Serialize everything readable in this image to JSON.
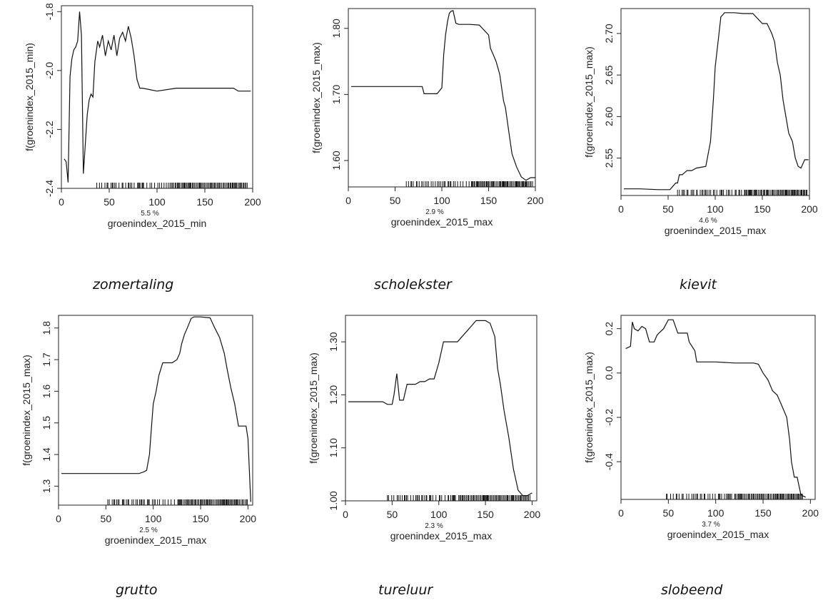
{
  "chart_data": [
    {
      "type": "line",
      "caption": "zomertaling",
      "xlabel": "groenindex_2015_min",
      "ylabel": "f(groenindex_2015_min)",
      "importance_label": "5.5 %",
      "xlim": [
        0,
        200
      ],
      "ylim": [
        -2.4,
        -1.78
      ],
      "x_ticks": [
        "0",
        "50",
        "100",
        "150",
        "200"
      ],
      "y_ticks": [
        "-2.4",
        "-2.2",
        "-2.0",
        "-1.8"
      ],
      "x": [
        3,
        5,
        7,
        9,
        11,
        13,
        15,
        17,
        19,
        21,
        23,
        25,
        27,
        29,
        31,
        33,
        35,
        38,
        40,
        43,
        46,
        49,
        52,
        55,
        58,
        61,
        64,
        67,
        70,
        73,
        76,
        79,
        82,
        85,
        100,
        120,
        140,
        160,
        180,
        185,
        198
      ],
      "y": [
        -2.3,
        -2.31,
        -2.38,
        -2.02,
        -1.96,
        -1.93,
        -1.92,
        -1.9,
        -1.8,
        -1.88,
        -2.35,
        -2.25,
        -2.15,
        -2.1,
        -2.08,
        -2.09,
        -1.97,
        -1.9,
        -1.92,
        -1.88,
        -1.95,
        -1.9,
        -1.93,
        -1.88,
        -1.95,
        -1.89,
        -1.87,
        -1.9,
        -1.85,
        -1.89,
        -1.95,
        -2.03,
        -2.06,
        -2.06,
        -2.07,
        -2.06,
        -2.06,
        -2.06,
        -2.06,
        -2.07,
        -2.07
      ],
      "rug_range": [
        37,
        195
      ]
    },
    {
      "type": "line",
      "caption": "scholekster",
      "xlabel": "groenindex_2015_max",
      "ylabel": "f(groenindex_2015_max)",
      "importance_label": "2.9 %",
      "xlim": [
        0,
        200
      ],
      "ylim": [
        1.56,
        1.83
      ],
      "x_ticks": [
        "0",
        "50",
        "100",
        "150",
        "200"
      ],
      "y_ticks": [
        "1.60",
        "1.70",
        "1.80"
      ],
      "x": [
        3,
        20,
        40,
        60,
        79,
        81,
        95,
        100,
        102,
        104,
        106,
        108,
        110,
        112,
        115,
        118,
        120,
        130,
        140,
        150,
        152,
        155,
        158,
        160,
        162,
        164,
        166,
        168,
        170,
        172,
        175,
        180,
        185,
        190,
        195,
        200
      ],
      "y": [
        1.712,
        1.712,
        1.712,
        1.712,
        1.712,
        1.701,
        1.701,
        1.71,
        1.76,
        1.79,
        1.81,
        1.823,
        1.826,
        1.827,
        1.808,
        1.806,
        1.806,
        1.806,
        1.805,
        1.79,
        1.77,
        1.76,
        1.75,
        1.74,
        1.73,
        1.71,
        1.69,
        1.68,
        1.66,
        1.64,
        1.61,
        1.59,
        1.575,
        1.57,
        1.574,
        1.574
      ],
      "rug_range": [
        62,
        198
      ]
    },
    {
      "type": "line",
      "caption": "kievit",
      "xlabel": "groenindex_2015_max",
      "ylabel": "f(groenindex_2015_max)",
      "importance_label": "4.6 %",
      "xlim": [
        0,
        200
      ],
      "ylim": [
        2.505,
        2.73
      ],
      "x_ticks": [
        "0",
        "50",
        "100",
        "150",
        "200"
      ],
      "y_ticks": [
        "2.55",
        "2.60",
        "2.65",
        "2.70"
      ],
      "x": [
        3,
        20,
        40,
        52,
        55,
        58,
        60,
        62,
        65,
        70,
        75,
        80,
        90,
        95,
        98,
        100,
        103,
        106,
        110,
        120,
        130,
        140,
        150,
        155,
        160,
        163,
        166,
        169,
        172,
        175,
        178,
        182,
        185,
        188,
        191,
        195,
        199
      ],
      "y": [
        2.513,
        2.513,
        2.512,
        2.512,
        2.516,
        2.52,
        2.52,
        2.53,
        2.53,
        2.535,
        2.535,
        2.538,
        2.54,
        2.57,
        2.62,
        2.66,
        2.69,
        2.72,
        2.725,
        2.725,
        2.724,
        2.724,
        2.712,
        2.712,
        2.7,
        2.69,
        2.665,
        2.65,
        2.62,
        2.6,
        2.58,
        2.57,
        2.55,
        2.54,
        2.538,
        2.548,
        2.548
      ],
      "rug_range": [
        60,
        198
      ]
    },
    {
      "type": "line",
      "caption": "grutto",
      "xlabel": "groenindex_2015_max",
      "ylabel": "f(groenindex_2015_max)",
      "importance_label": "2.5 %",
      "xlim": [
        0,
        205
      ],
      "ylim": [
        1.24,
        1.84
      ],
      "x_ticks": [
        "0",
        "50",
        "100",
        "150",
        "200"
      ],
      "y_ticks": [
        "1.3",
        "1.4",
        "1.5",
        "1.6",
        "1.7",
        "1.8"
      ],
      "x": [
        3,
        20,
        40,
        60,
        85,
        90,
        93,
        96,
        98,
        100,
        103,
        106,
        110,
        115,
        120,
        125,
        128,
        130,
        133,
        136,
        140,
        143,
        150,
        160,
        165,
        170,
        175,
        178,
        182,
        186,
        190,
        195,
        198,
        200,
        203
      ],
      "y": [
        1.34,
        1.34,
        1.34,
        1.34,
        1.34,
        1.345,
        1.35,
        1.4,
        1.48,
        1.56,
        1.6,
        1.65,
        1.69,
        1.69,
        1.69,
        1.7,
        1.72,
        1.75,
        1.78,
        1.8,
        1.83,
        1.835,
        1.835,
        1.832,
        1.8,
        1.77,
        1.72,
        1.67,
        1.61,
        1.56,
        1.49,
        1.49,
        1.49,
        1.45,
        1.25
      ],
      "rug_range": [
        52,
        200
      ]
    },
    {
      "type": "line",
      "caption": "tureluur",
      "xlabel": "groenindex_2015_max",
      "ylabel": "f(groenindex_2015_max)",
      "importance_label": "2.3 %",
      "xlim": [
        0,
        205
      ],
      "ylim": [
        1.0,
        1.35
      ],
      "x_ticks": [
        "0",
        "50",
        "100",
        "150",
        "200"
      ],
      "y_ticks": [
        "1.00",
        "1.10",
        "1.20",
        "1.30"
      ],
      "x": [
        3,
        20,
        40,
        45,
        50,
        52,
        55,
        58,
        62,
        66,
        70,
        75,
        80,
        85,
        90,
        95,
        100,
        105,
        110,
        115,
        120,
        125,
        130,
        135,
        140,
        145,
        150,
        155,
        160,
        163,
        166,
        170,
        175,
        180,
        185,
        190,
        195,
        200
      ],
      "y": [
        1.187,
        1.187,
        1.187,
        1.182,
        1.182,
        1.2,
        1.24,
        1.19,
        1.19,
        1.22,
        1.22,
        1.22,
        1.225,
        1.225,
        1.23,
        1.23,
        1.26,
        1.3,
        1.3,
        1.3,
        1.3,
        1.31,
        1.32,
        1.33,
        1.34,
        1.34,
        1.34,
        1.335,
        1.31,
        1.25,
        1.22,
        1.17,
        1.12,
        1.06,
        1.02,
        1.01,
        1.01,
        1.015
      ],
      "rug_range": [
        45,
        198
      ]
    },
    {
      "type": "line",
      "caption": "slobeend",
      "xlabel": "groenindex_2015_max",
      "ylabel": "f(groenindex_2015_max)",
      "importance_label": "3.7 %",
      "xlim": [
        0,
        205
      ],
      "ylim": [
        -0.57,
        0.26
      ],
      "x_ticks": [
        "0",
        "50",
        "100",
        "150",
        "200"
      ],
      "y_ticks": [
        "-0.4",
        "-0.2",
        "0.0",
        "0.2"
      ],
      "x": [
        5,
        10,
        12,
        14,
        18,
        22,
        26,
        30,
        35,
        38,
        40,
        45,
        50,
        55,
        60,
        65,
        70,
        72,
        75,
        78,
        80,
        90,
        100,
        120,
        140,
        145,
        150,
        155,
        160,
        165,
        170,
        175,
        178,
        180,
        183,
        186,
        190,
        195
      ],
      "y": [
        0.11,
        0.12,
        0.23,
        0.2,
        0.19,
        0.21,
        0.2,
        0.14,
        0.14,
        0.17,
        0.18,
        0.2,
        0.24,
        0.24,
        0.18,
        0.18,
        0.18,
        0.14,
        0.12,
        0.1,
        0.05,
        0.05,
        0.05,
        0.045,
        0.045,
        0.04,
        0.0,
        -0.03,
        -0.08,
        -0.1,
        -0.15,
        -0.2,
        -0.3,
        -0.4,
        -0.47,
        -0.47,
        -0.55,
        -0.56
      ],
      "rug_range": [
        48,
        192
      ]
    }
  ]
}
